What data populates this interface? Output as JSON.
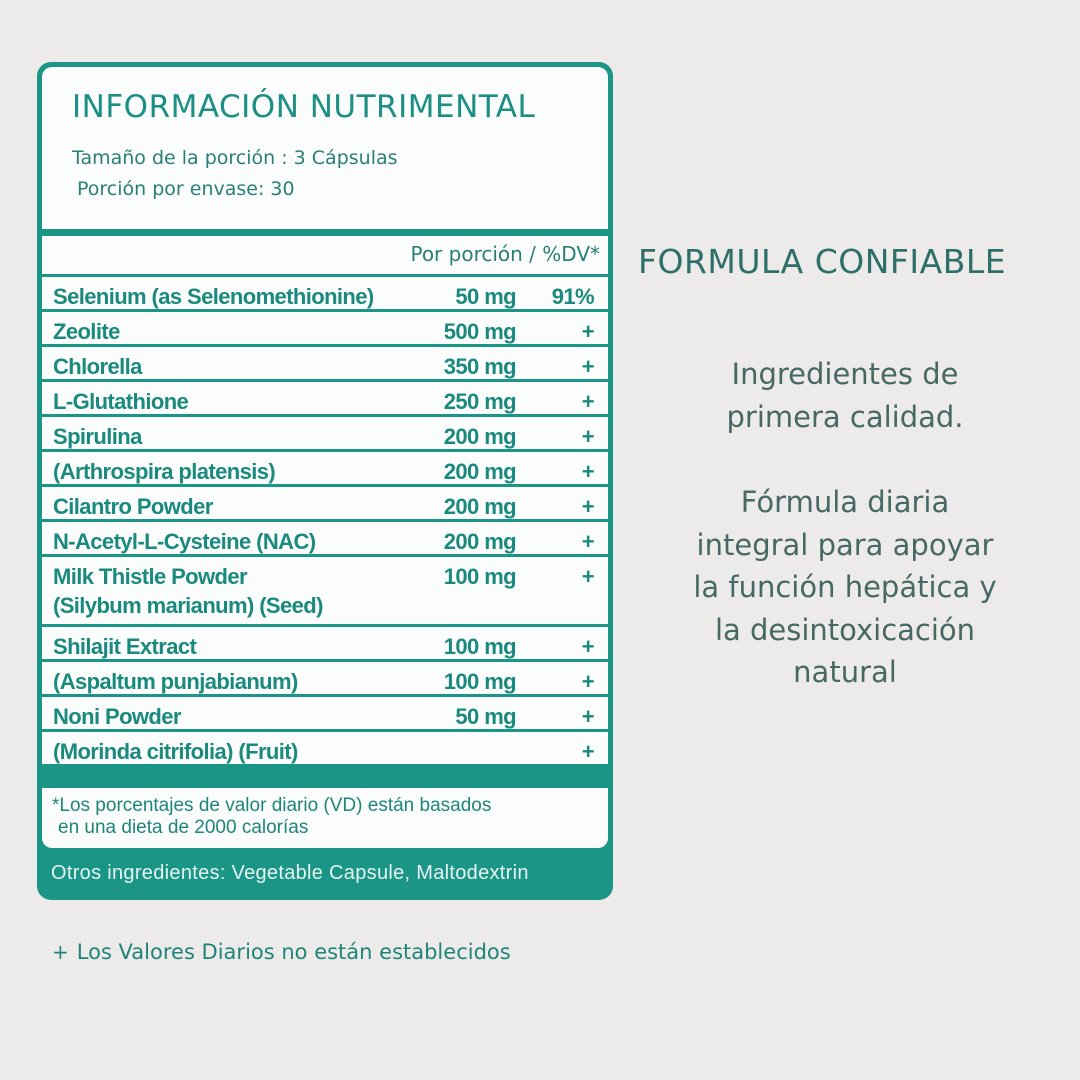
{
  "label": {
    "title": "INFORMACIÓN NUTRIMENTAL",
    "serving_size": "Tamaño de la porción : 3 Cápsulas",
    "servings_per_container": "Porción por envase: 30",
    "column_header": "Por porción / %DV*",
    "rows": [
      {
        "name": [
          "Selenium (as Selenomethionine)"
        ],
        "amount": "50 mg",
        "dv": "91%"
      },
      {
        "name": [
          "Zeolite"
        ],
        "amount": "500 mg",
        "dv": "+"
      },
      {
        "name": [
          "Chlorella"
        ],
        "amount": "350 mg",
        "dv": "+"
      },
      {
        "name": [
          "L-Glutathione"
        ],
        "amount": "250 mg",
        "dv": "+"
      },
      {
        "name": [
          "Spirulina"
        ],
        "amount": "200 mg",
        "dv": "+"
      },
      {
        "name": [
          "(Arthrospira platensis)"
        ],
        "amount": "200 mg",
        "dv": "+"
      },
      {
        "name": [
          "Cilantro Powder"
        ],
        "amount": "200 mg",
        "dv": "+"
      },
      {
        "name": [
          "N-Acetyl-L-Cysteine (NAC)"
        ],
        "amount": "200 mg",
        "dv": "+"
      },
      {
        "name": [
          "Milk Thistle Powder",
          "(Silybum marianum) (Seed)"
        ],
        "amount": "100 mg",
        "dv": "+"
      },
      {
        "name": [
          "Shilajit Extract"
        ],
        "amount": "100 mg",
        "dv": "+"
      },
      {
        "name": [
          "(Aspaltum   punjabianum)"
        ],
        "amount": "100 mg",
        "dv": "+"
      },
      {
        "name": [
          "Noni Powder"
        ],
        "amount": "50 mg",
        "dv": "+"
      },
      {
        "name": [
          "(Morinda citrifolia)  (Fruit)"
        ],
        "amount": "",
        "dv": "+"
      }
    ],
    "footnote_line1": "*Los porcentajes de valor diario (VD) están basados",
    "footnote_line2": "en una dieta de 2000 calorías",
    "other_ingredients": "Otros ingredientes: Vegetable Capsule, Maltodextrin"
  },
  "note": {
    "symbol": "+",
    "text": "Los Valores Diarios no están establecidos"
  },
  "side": {
    "title": "FORMULA CONFIABLE",
    "paragraph1": [
      "Ingredientes de",
      "primera calidad."
    ],
    "paragraph2": [
      "Fórmula diaria",
      "integral para apoyar",
      "la función hepática y",
      "la desintoxicación",
      "natural"
    ]
  },
  "colors": {
    "accent": "#1b9586",
    "background": "#ecebe9",
    "side_text": "#476864"
  }
}
